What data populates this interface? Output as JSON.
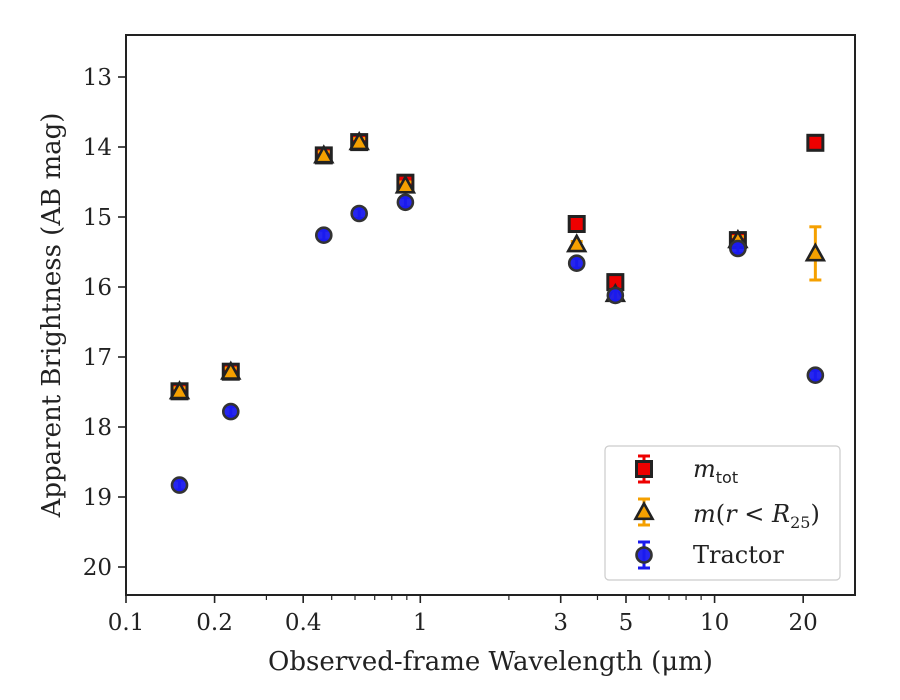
{
  "chart_data": {
    "type": "scatter",
    "title": "",
    "xlabel": "Observed-frame Wavelength (μm)",
    "ylabel": "Apparent Brightness (AB mag)",
    "x_scale": "log",
    "xlim": [
      0.1,
      30
    ],
    "ylim": [
      20.4,
      12.4
    ],
    "y_inverted": true,
    "grid": false,
    "legend_position": "lower-right",
    "x_ticks": [
      0.1,
      0.2,
      0.4,
      1,
      3,
      5,
      10,
      20
    ],
    "x_tick_labels": [
      "0.1",
      "0.2",
      "0.4",
      "1",
      "3",
      "5",
      "10",
      "20"
    ],
    "y_ticks": [
      13,
      14,
      15,
      16,
      17,
      18,
      19,
      20
    ],
    "y_tick_labels": [
      "13",
      "14",
      "15",
      "16",
      "17",
      "18",
      "19",
      "20"
    ],
    "series": [
      {
        "name": "m_tot",
        "legend_label": "mtot",
        "marker": "square",
        "color": "#ee0000",
        "edge_color": "#222222",
        "points": [
          {
            "x": 0.152,
            "y": 17.49,
            "err": 0.05
          },
          {
            "x": 0.227,
            "y": 17.21,
            "err": 0.05
          },
          {
            "x": 0.47,
            "y": 14.12,
            "err": 0.05
          },
          {
            "x": 0.62,
            "y": 13.93,
            "err": 0.05
          },
          {
            "x": 0.89,
            "y": 14.51,
            "err": 0.05
          },
          {
            "x": 3.4,
            "y": 15.1,
            "err": 0.03
          },
          {
            "x": 4.6,
            "y": 15.93,
            "err": 0.05
          },
          {
            "x": 12.0,
            "y": 15.33,
            "err": 0.05
          },
          {
            "x": 22.0,
            "y": 13.94,
            "err": 0.03
          }
        ]
      },
      {
        "name": "m(r<R25)",
        "legend_label": "m(r < R25)",
        "marker": "triangle",
        "color": "#f5a000",
        "edge_color": "#222222",
        "points": [
          {
            "x": 0.152,
            "y": 17.49,
            "err": 0.05
          },
          {
            "x": 0.227,
            "y": 17.21,
            "err": 0.05
          },
          {
            "x": 0.47,
            "y": 14.12,
            "err": 0.05
          },
          {
            "x": 0.62,
            "y": 13.93,
            "err": 0.05
          },
          {
            "x": 0.89,
            "y": 14.55,
            "err": 0.05
          },
          {
            "x": 3.4,
            "y": 15.39,
            "err": 0.04
          },
          {
            "x": 4.6,
            "y": 16.1,
            "err": 0.05
          },
          {
            "x": 12.0,
            "y": 15.33,
            "err": 0.05
          },
          {
            "x": 22.0,
            "y": 15.52,
            "err": 0.38
          }
        ]
      },
      {
        "name": "Tractor",
        "legend_label": "Tractor",
        "marker": "circle",
        "color": "#1a1aee",
        "edge_color": "#333333",
        "points": [
          {
            "x": 0.152,
            "y": 18.83,
            "err": 0.07
          },
          {
            "x": 0.227,
            "y": 17.78,
            "err": 0.07
          },
          {
            "x": 0.47,
            "y": 15.26,
            "err": 0.07
          },
          {
            "x": 0.62,
            "y": 14.95,
            "err": 0.07
          },
          {
            "x": 0.89,
            "y": 14.79,
            "err": 0.07
          },
          {
            "x": 3.4,
            "y": 15.66,
            "err": 0.07
          },
          {
            "x": 4.6,
            "y": 16.12,
            "err": 0.07
          },
          {
            "x": 12.0,
            "y": 15.45,
            "err": 0.07
          },
          {
            "x": 22.0,
            "y": 17.26,
            "err": 0.07
          }
        ]
      }
    ]
  }
}
